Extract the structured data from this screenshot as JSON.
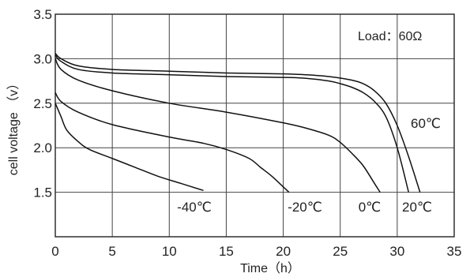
{
  "chart_data": {
    "type": "line",
    "title": "",
    "xlabel": "Time（h）",
    "ylabel": "cell voltage （v）",
    "xlim": [
      0,
      35
    ],
    "ylim": [
      1.0,
      3.5
    ],
    "xticks": [
      "0",
      "5",
      "10",
      "15",
      "20",
      "25",
      "30",
      "35"
    ],
    "yticks": [
      "1.5",
      "2.0",
      "2.5",
      "3.0",
      "3.5"
    ],
    "grid": true,
    "annotation": "Load：60Ω",
    "series": [
      {
        "name": "60℃",
        "x": [
          0,
          0.5,
          2,
          5,
          10,
          15,
          20,
          22,
          24,
          26,
          27,
          28,
          29,
          30,
          31,
          32
        ],
        "y": [
          3.06,
          3.0,
          2.92,
          2.88,
          2.86,
          2.84,
          2.83,
          2.82,
          2.8,
          2.76,
          2.72,
          2.64,
          2.5,
          2.25,
          1.9,
          1.5
        ]
      },
      {
        "name": "20℃",
        "x": [
          0,
          0.5,
          2,
          5,
          10,
          15,
          20,
          22,
          24,
          25,
          26,
          27,
          28,
          29,
          30,
          31
        ],
        "y": [
          3.04,
          2.97,
          2.88,
          2.84,
          2.82,
          2.8,
          2.79,
          2.78,
          2.75,
          2.72,
          2.68,
          2.62,
          2.52,
          2.35,
          2.0,
          1.5
        ]
      },
      {
        "name": "0℃",
        "x": [
          0,
          0.5,
          2,
          5,
          10,
          15,
          20,
          22,
          24,
          25,
          26,
          27,
          28,
          28.5
        ],
        "y": [
          3.0,
          2.88,
          2.76,
          2.64,
          2.5,
          2.4,
          2.28,
          2.22,
          2.14,
          2.06,
          1.94,
          1.8,
          1.6,
          1.5
        ]
      },
      {
        "name": "-20℃",
        "x": [
          0,
          0.5,
          2,
          5,
          10,
          13,
          15,
          17,
          18,
          19,
          20,
          20.5
        ],
        "y": [
          2.62,
          2.52,
          2.4,
          2.26,
          2.12,
          2.05,
          1.98,
          1.88,
          1.78,
          1.68,
          1.56,
          1.5
        ]
      },
      {
        "name": "-40℃",
        "x": [
          0,
          0.5,
          1,
          2,
          3,
          5,
          7,
          9,
          11,
          13
        ],
        "y": [
          2.5,
          2.35,
          2.2,
          2.07,
          1.98,
          1.88,
          1.78,
          1.68,
          1.6,
          1.52
        ]
      }
    ]
  }
}
